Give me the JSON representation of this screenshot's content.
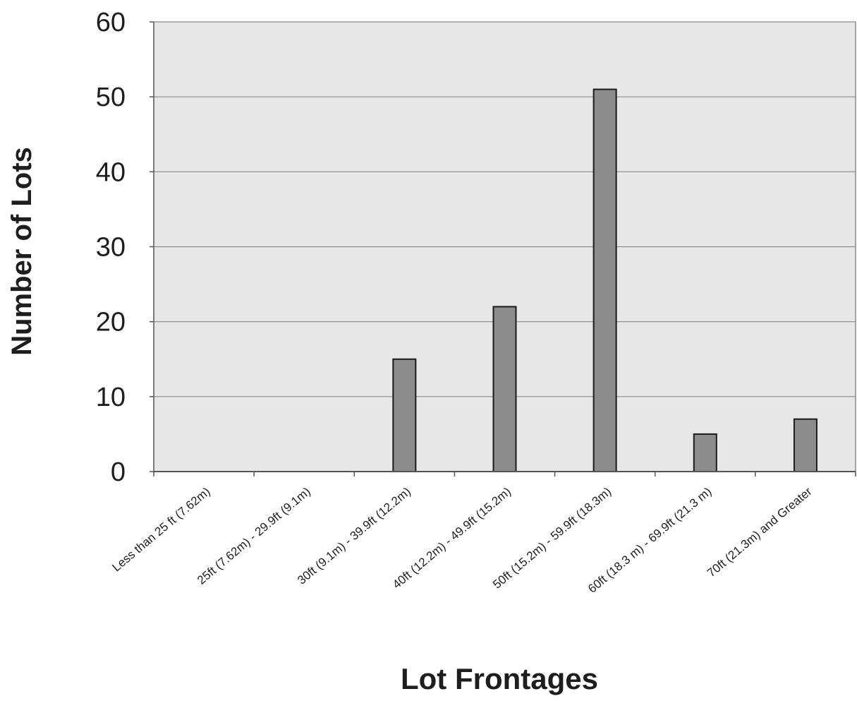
{
  "chart_data": {
    "type": "bar",
    "title": "",
    "xlabel": "Lot Frontages",
    "ylabel": "Number of Lots",
    "categories": [
      "Less than 25 ft (7.62m)",
      "25ft (7.62m) - 29.9ft (9.1m)",
      "30ft (9.1m) - 39.9ft (12.2m)",
      "40ft (12.2m) - 49.9ft (15.2m)",
      "50ft (15.2m) - 59.9ft (18.3m)",
      "60ft (18.3 m) - 69.9ft (21.3 m)",
      "70ft (21.3m) and Greater"
    ],
    "values": [
      0,
      0,
      15,
      22,
      51,
      5,
      7
    ],
    "ylim": [
      0,
      60
    ],
    "yticks": [
      0,
      10,
      20,
      30,
      40,
      50,
      60
    ],
    "grid": true,
    "legend": "none"
  },
  "colors": {
    "plot_background": "#e7e7e7",
    "bar_fill": "#8c8c8c",
    "bar_stroke": "#1a1a1a",
    "gridline": "#8a8a8a",
    "axis": "#555555",
    "text": "#1e1e1e"
  }
}
